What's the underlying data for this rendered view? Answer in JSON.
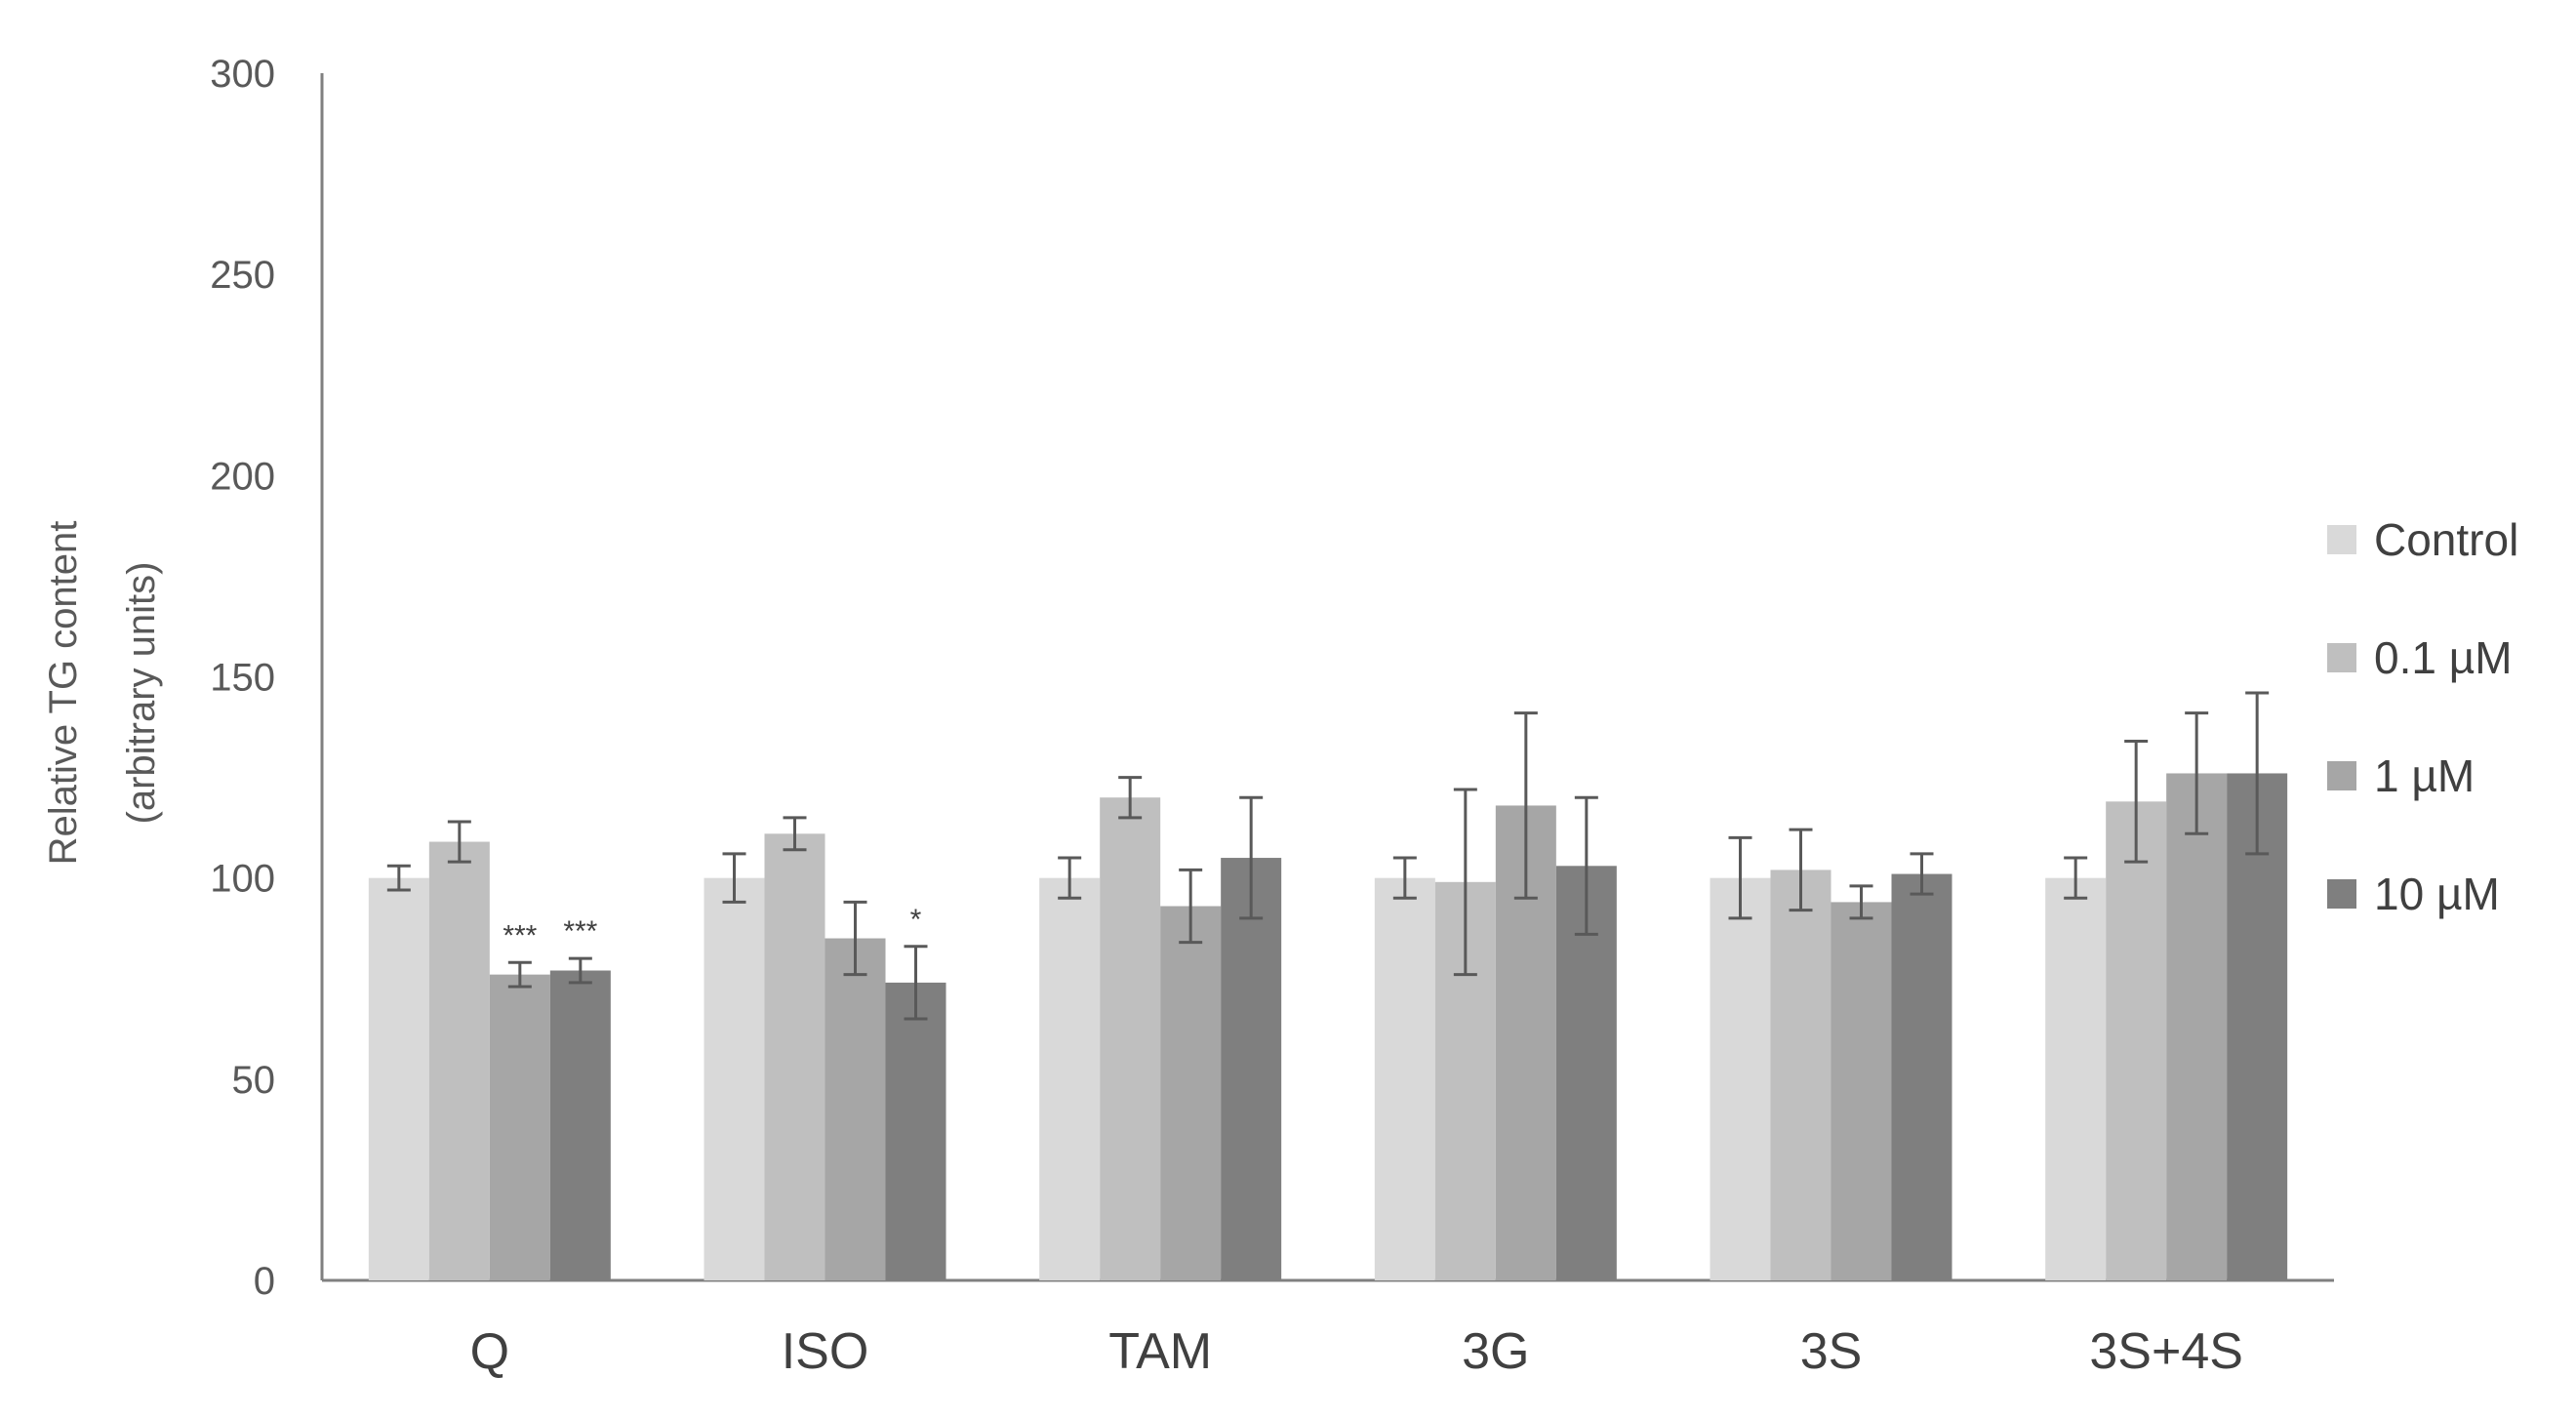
{
  "chart_data": {
    "type": "bar",
    "ylabel": [
      "Relative TG content",
      "(arbitrary units)"
    ],
    "xlabel": "",
    "ylim": [
      0,
      300
    ],
    "yticks": [
      0,
      50,
      100,
      150,
      200,
      250,
      300
    ],
    "grid": false,
    "legend_position": "right",
    "categories": [
      "Q",
      "ISO",
      "TAM",
      "3G",
      "3S",
      "3S+4S"
    ],
    "series": [
      {
        "name": "Control",
        "color": "#d9d9d9",
        "values": [
          100,
          100,
          100,
          100,
          100,
          100
        ],
        "errors": [
          3,
          6,
          5,
          5,
          10,
          5
        ]
      },
      {
        "name": "0.1 µM",
        "color": "#bfbfbf",
        "values": [
          109,
          111,
          120,
          99,
          102,
          119
        ],
        "errors": [
          5,
          4,
          5,
          23,
          10,
          15
        ]
      },
      {
        "name": "1 µM",
        "color": "#a6a6a6",
        "values": [
          76,
          85,
          93,
          118,
          94,
          126
        ],
        "errors": [
          3,
          9,
          9,
          23,
          4,
          15
        ]
      },
      {
        "name": "10 µM",
        "color": "#7f7f7f",
        "values": [
          77,
          74,
          105,
          103,
          101,
          126
        ],
        "errors": [
          3,
          9,
          15,
          17,
          5,
          20
        ]
      }
    ],
    "significance": [
      {
        "category": "Q",
        "series": "1 µM",
        "label": "***"
      },
      {
        "category": "Q",
        "series": "10 µM",
        "label": "***"
      },
      {
        "category": "ISO",
        "series": "10 µM",
        "label": "*"
      }
    ]
  }
}
